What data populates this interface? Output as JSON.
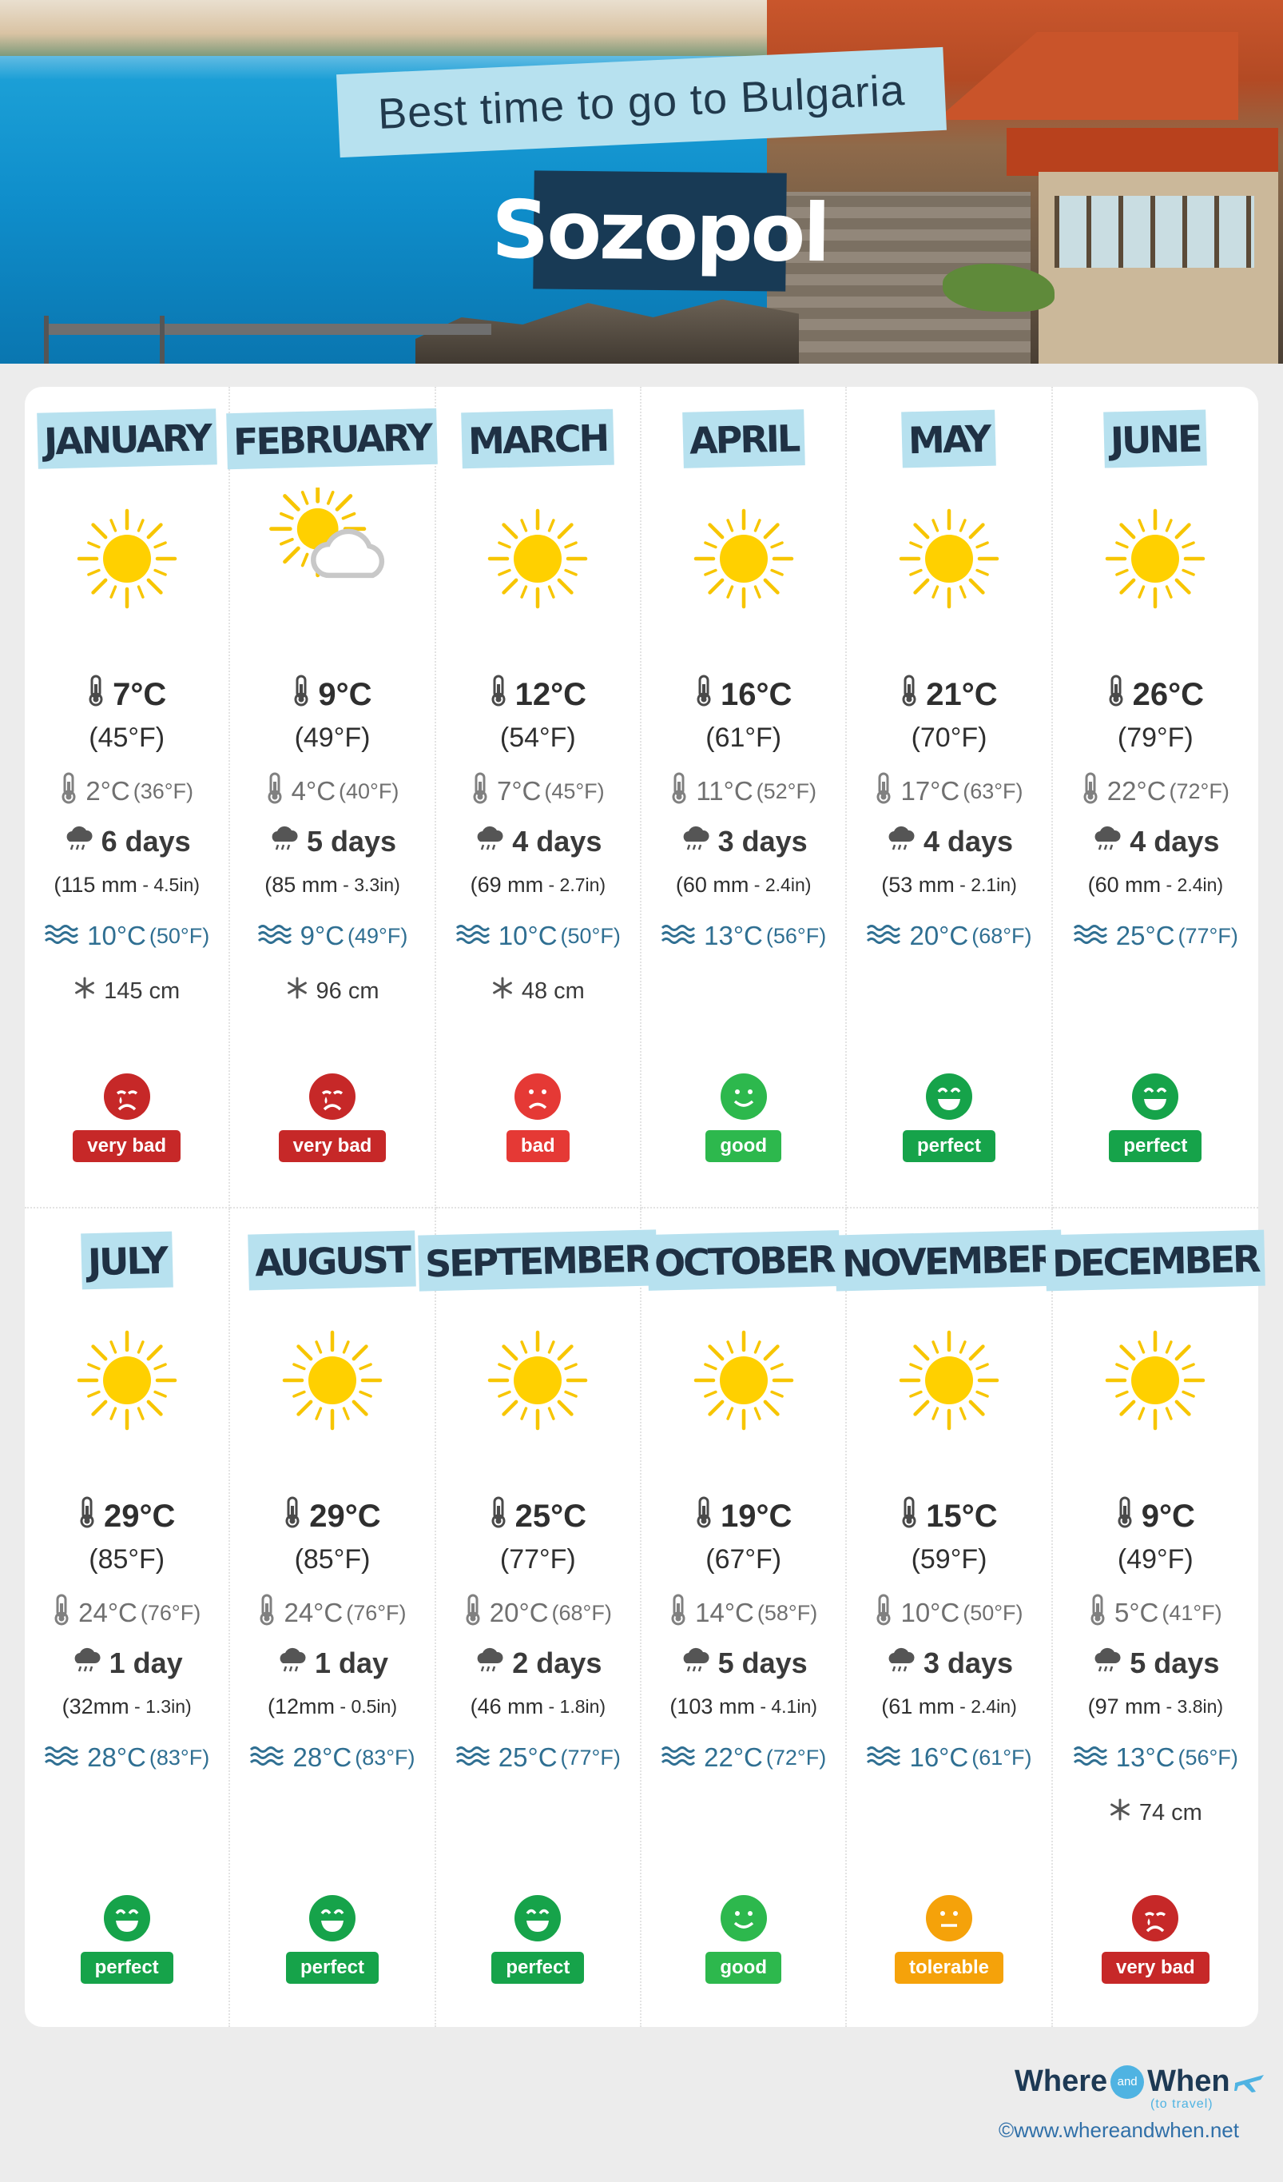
{
  "header": {
    "title": "Best time to go to Bulgaria",
    "city": "Sozopol"
  },
  "colors": {
    "very_bad": "#c62828",
    "bad": "#e53935",
    "good": "#2db84d",
    "perfect": "#16a34a",
    "tolerable": "#f5a20a",
    "sea": "#2f6f92",
    "label_bg": "#b7e1ef"
  },
  "months": [
    {
      "name": "JANUARY",
      "icon": "sun-icon",
      "max": "7°C",
      "max_f": "(45°F)",
      "min": "2°C",
      "min_f": "(36°F)",
      "rain": "6 days",
      "rain_mm": "(115 mm",
      "rain_in": " - 4.5in)",
      "sea": "10°C",
      "sea_f": "(50°F)",
      "snow": "145 cm",
      "face": "crying-face-icon",
      "rating": "very bad",
      "rating_key": "very_bad"
    },
    {
      "name": "FEBRUARY",
      "icon": "sun-behind-cloud-icon",
      "max": "9°C",
      "max_f": "(49°F)",
      "min": "4°C",
      "min_f": "(40°F)",
      "rain": "5 days",
      "rain_mm": "(85 mm",
      "rain_in": " - 3.3in)",
      "sea": "9°C",
      "sea_f": "(49°F)",
      "snow": "96 cm",
      "face": "crying-face-icon",
      "rating": "very bad",
      "rating_key": "very_bad"
    },
    {
      "name": "MARCH",
      "icon": "sun-icon",
      "max": "12°C",
      "max_f": "(54°F)",
      "min": "7°C",
      "min_f": "(45°F)",
      "rain": "4 days",
      "rain_mm": "(69 mm",
      "rain_in": " - 2.7in)",
      "sea": "10°C",
      "sea_f": "(50°F)",
      "snow": "48 cm",
      "face": "sad-face-icon",
      "rating": "bad",
      "rating_key": "bad"
    },
    {
      "name": "APRIL",
      "icon": "sun-icon",
      "max": "16°C",
      "max_f": "(61°F)",
      "min": "11°C",
      "min_f": "(52°F)",
      "rain": "3 days",
      "rain_mm": "(60 mm",
      "rain_in": " - 2.4in)",
      "sea": "13°C",
      "sea_f": "(56°F)",
      "snow": "",
      "face": "smile-face-icon",
      "rating": "good",
      "rating_key": "good"
    },
    {
      "name": "MAY",
      "icon": "sun-icon",
      "max": "21°C",
      "max_f": "(70°F)",
      "min": "17°C",
      "min_f": "(63°F)",
      "rain": "4 days",
      "rain_mm": "(53 mm",
      "rain_in": " - 2.1in)",
      "sea": "20°C",
      "sea_f": "(68°F)",
      "snow": "",
      "face": "heart-eyes-face-icon",
      "rating": "perfect",
      "rating_key": "perfect"
    },
    {
      "name": "JUNE",
      "icon": "sun-icon",
      "max": "26°C",
      "max_f": "(79°F)",
      "min": "22°C",
      "min_f": "(72°F)",
      "rain": "4 days",
      "rain_mm": "(60 mm",
      "rain_in": " - 2.4in)",
      "sea": "25°C",
      "sea_f": "(77°F)",
      "snow": "",
      "face": "heart-eyes-face-icon",
      "rating": "perfect",
      "rating_key": "perfect"
    },
    {
      "name": "JULY",
      "icon": "sun-icon",
      "max": "29°C",
      "max_f": "(85°F)",
      "min": "24°C",
      "min_f": "(76°F)",
      "rain": "1 day",
      "rain_mm": "(32mm",
      "rain_in": " - 1.3in)",
      "sea": "28°C",
      "sea_f": "(83°F)",
      "snow": "",
      "face": "heart-eyes-face-icon",
      "rating": "perfect",
      "rating_key": "perfect"
    },
    {
      "name": "AUGUST",
      "icon": "sun-icon",
      "max": "29°C",
      "max_f": "(85°F)",
      "min": "24°C",
      "min_f": "(76°F)",
      "rain": "1 day",
      "rain_mm": "(12mm",
      "rain_in": " - 0.5in)",
      "sea": "28°C",
      "sea_f": "(83°F)",
      "snow": "",
      "face": "heart-eyes-face-icon",
      "rating": "perfect",
      "rating_key": "perfect"
    },
    {
      "name": "SEPTEMBER",
      "icon": "sun-icon",
      "max": "25°C",
      "max_f": "(77°F)",
      "min": "20°C",
      "min_f": "(68°F)",
      "rain": "2 days",
      "rain_mm": "(46 mm",
      "rain_in": " - 1.8in)",
      "sea": "25°C",
      "sea_f": "(77°F)",
      "snow": "",
      "face": "heart-eyes-face-icon",
      "rating": "perfect",
      "rating_key": "perfect"
    },
    {
      "name": "OCTOBER",
      "icon": "sun-icon",
      "max": "19°C",
      "max_f": "(67°F)",
      "min": "14°C",
      "min_f": "(58°F)",
      "rain": "5 days",
      "rain_mm": "(103 mm",
      "rain_in": " - 4.1in)",
      "sea": "22°C",
      "sea_f": "(72°F)",
      "snow": "",
      "face": "smile-face-icon",
      "rating": "good",
      "rating_key": "good"
    },
    {
      "name": "NOVEMBER",
      "icon": "sun-icon",
      "max": "15°C",
      "max_f": "(59°F)",
      "min": "10°C",
      "min_f": "(50°F)",
      "rain": "3 days",
      "rain_mm": "(61 mm",
      "rain_in": " - 2.4in)",
      "sea": "16°C",
      "sea_f": "(61°F)",
      "snow": "",
      "face": "neutral-face-icon",
      "rating": "tolerable",
      "rating_key": "tolerable"
    },
    {
      "name": "DECEMBER",
      "icon": "sun-icon",
      "max": "9°C",
      "max_f": "(49°F)",
      "min": "5°C",
      "min_f": "(41°F)",
      "rain": "5 days",
      "rain_mm": "(97 mm",
      "rain_in": " - 3.8in)",
      "sea": "13°C",
      "sea_f": "(56°F)",
      "snow": "74 cm",
      "face": "crying-face-icon",
      "rating": "very bad",
      "rating_key": "very_bad"
    }
  ],
  "footer": {
    "logo_where": "Where",
    "logo_and": "and",
    "logo_when": "When",
    "logo_sub": "(to travel)",
    "copyright": "©www.whereandwhen.net"
  }
}
